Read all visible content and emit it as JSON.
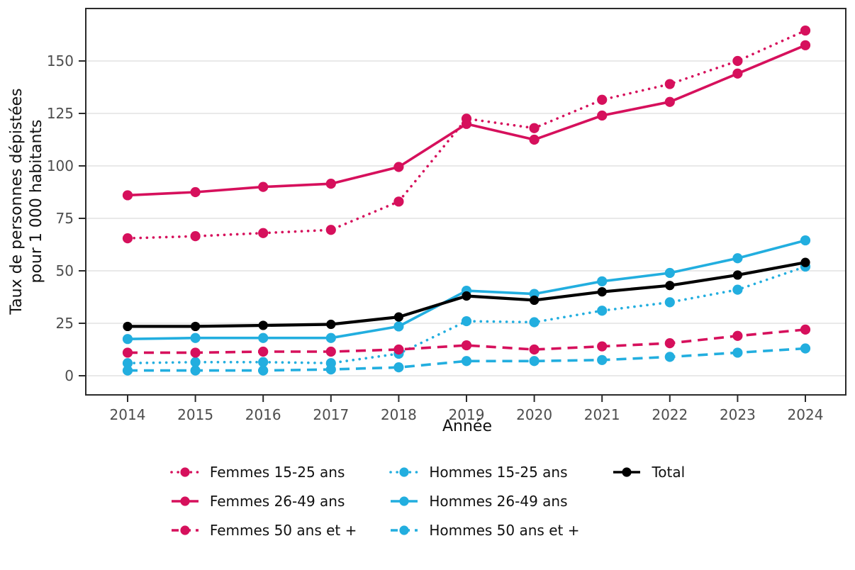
{
  "chart_data": {
    "type": "line",
    "title": "",
    "xlabel": "Année",
    "ylabel_line1": "Taux de personnes dépistées",
    "ylabel_line2": "pour 1 000 habitants",
    "x_labels": [
      "2014",
      "2015",
      "2016",
      "2017",
      "2018",
      "2019",
      "2020",
      "2021",
      "2022",
      "2023",
      "2024"
    ],
    "y_ticks": [
      0,
      25,
      50,
      75,
      100,
      125,
      150
    ],
    "ylim": [
      0,
      175
    ],
    "grid": "horizontal",
    "legend_position": "bottom",
    "draw_order": [
      3,
      4,
      5,
      0,
      1,
      2,
      6
    ],
    "series": [
      {
        "name": "Femmes 15-25 ans",
        "color": "#D6105C",
        "line_style": "dotted",
        "values": [
          65.5,
          66.5,
          68,
          69.5,
          83,
          122.5,
          118,
          131.5,
          139,
          150,
          164.5
        ]
      },
      {
        "name": "Femmes 26-49 ans",
        "color": "#D6105C",
        "line_style": "solid",
        "values": [
          86,
          87.5,
          90,
          91.5,
          99.5,
          120,
          112.5,
          124,
          130.5,
          144,
          157.5
        ]
      },
      {
        "name": "Femmes 50 ans et +",
        "color": "#D6105C",
        "line_style": "dashed",
        "values": [
          11,
          11,
          11.5,
          11.5,
          12.5,
          14.5,
          12.5,
          14,
          15.5,
          19,
          22
        ]
      },
      {
        "name": "Hommes 15-25 ans",
        "color": "#22AEDF",
        "line_style": "dotted",
        "values": [
          6,
          6.5,
          6.5,
          6,
          10.5,
          26,
          25.5,
          31,
          35,
          41,
          52
        ]
      },
      {
        "name": "Hommes 26-49 ans",
        "color": "#22AEDF",
        "line_style": "solid",
        "values": [
          17.5,
          18,
          18,
          18,
          23.5,
          40.5,
          39,
          45,
          49,
          56,
          64.5
        ]
      },
      {
        "name": "Hommes 50 ans et +",
        "color": "#22AEDF",
        "line_style": "dashed",
        "values": [
          2.5,
          2.5,
          2.5,
          3,
          4,
          7,
          7,
          7.5,
          9,
          11,
          13
        ]
      },
      {
        "name": "Total",
        "color": "#000000",
        "line_style": "solid",
        "values": [
          23.5,
          23.5,
          24,
          24.5,
          28,
          38,
          36,
          40,
          43,
          48,
          54
        ]
      }
    ]
  },
  "legend": {
    "columns": [
      [
        0,
        1,
        2
      ],
      [
        3,
        4,
        5
      ],
      [
        6
      ]
    ]
  },
  "colors": {
    "femmes": "#D6105C",
    "hommes": "#22AEDF",
    "total": "#000000",
    "tick_label": "#4D4D4D",
    "gridline": "#E6E6E6",
    "axis": "#2B2B2B",
    "background": "#FFFFFF"
  }
}
